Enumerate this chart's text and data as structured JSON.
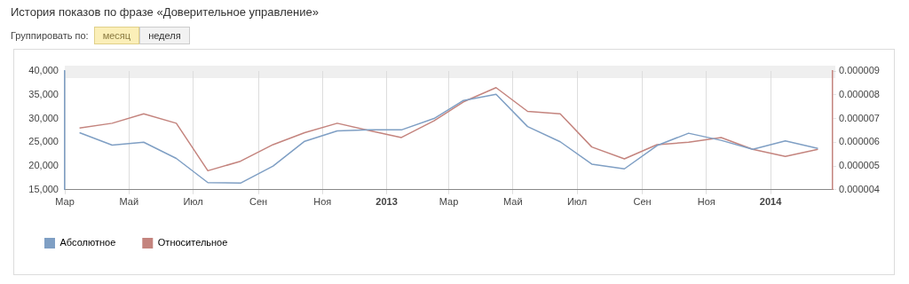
{
  "chart_data": {
    "type": "line",
    "title": "История показов по фразе «Доверительное управление»",
    "annotations": [
      "Группировать по:",
      "месяц",
      "неделя"
    ],
    "x": [
      "2012-03-15",
      "2012-04-15",
      "2012-05-15",
      "2012-06-15",
      "2012-07-15",
      "2012-08-15",
      "2012-09-15",
      "2012-10-15",
      "2012-11-15",
      "2012-12-15",
      "2013-01-15",
      "2013-02-15",
      "2013-03-15",
      "2013-04-15",
      "2013-05-15",
      "2013-06-15",
      "2013-07-15",
      "2013-08-15",
      "2013-09-15",
      "2013-10-15",
      "2013-11-15",
      "2013-12-15",
      "2014-01-15",
      "2014-02-15"
    ],
    "series": [
      {
        "name": "Абсолютное",
        "color": "#7f9fc4",
        "values": [
          27000,
          24400,
          25000,
          21600,
          16500,
          16400,
          20000,
          25200,
          27400,
          27600,
          27600,
          30000,
          33800,
          35100,
          28300,
          25100,
          20400,
          19400,
          24300,
          26900,
          25400,
          23500,
          25300,
          23700
        ]
      },
      {
        "name": "Относительное",
        "color": "#c4847e",
        "axis": "y2",
        "values": [
          6.6e-06,
          6.8e-06,
          7.2e-06,
          6.8e-06,
          4.8e-06,
          5.2e-06,
          5.9e-06,
          6.4e-06,
          6.8e-06,
          6.5e-06,
          6.2e-06,
          6.9e-06,
          7.7e-06,
          8.3e-06,
          7.3e-06,
          7.2e-06,
          5.8e-06,
          5.3e-06,
          5.9e-06,
          6e-06,
          6.2e-06,
          5.7e-06,
          5.4e-06,
          5.7e-06
        ]
      }
    ],
    "xlim": [
      "2012-03-01",
      "2014-03-01"
    ],
    "xticks": [
      {
        "value": "2012-03-01",
        "label": "Мар"
      },
      {
        "value": "2012-05-01",
        "label": "Май"
      },
      {
        "value": "2012-07-01",
        "label": "Июл"
      },
      {
        "value": "2012-09-01",
        "label": "Сен"
      },
      {
        "value": "2012-11-01",
        "label": "Ноя"
      },
      {
        "value": "2013-01-01",
        "label": "2013"
      },
      {
        "value": "2013-03-01",
        "label": "Мар"
      },
      {
        "value": "2013-05-01",
        "label": "Май"
      },
      {
        "value": "2013-07-01",
        "label": "Июл"
      },
      {
        "value": "2013-09-01",
        "label": "Сен"
      },
      {
        "value": "2013-11-01",
        "label": "Ноя"
      },
      {
        "value": "2014-01-01",
        "label": "2014"
      }
    ],
    "ylim": [
      15000,
      40000
    ],
    "yticks": [
      {
        "value": 15000,
        "label": "15,000"
      },
      {
        "value": 20000,
        "label": "20,000"
      },
      {
        "value": 25000,
        "label": "25,000"
      },
      {
        "value": 30000,
        "label": "30,000"
      },
      {
        "value": 35000,
        "label": "35,000"
      },
      {
        "value": 40000,
        "label": "40,000"
      }
    ],
    "y2lim": [
      4e-06,
      9e-06
    ],
    "y2ticks": [
      {
        "value": 4e-06,
        "label": "0.000004"
      },
      {
        "value": 5e-06,
        "label": "0.000005"
      },
      {
        "value": 6e-06,
        "label": "0.000006"
      },
      {
        "value": 7e-06,
        "label": "0.000007"
      },
      {
        "value": 8e-06,
        "label": "0.000008"
      },
      {
        "value": 9e-06,
        "label": "0.000009"
      }
    ],
    "grid": "x",
    "legend": "bottom left",
    "marker": "none",
    "line_style": "solid"
  }
}
